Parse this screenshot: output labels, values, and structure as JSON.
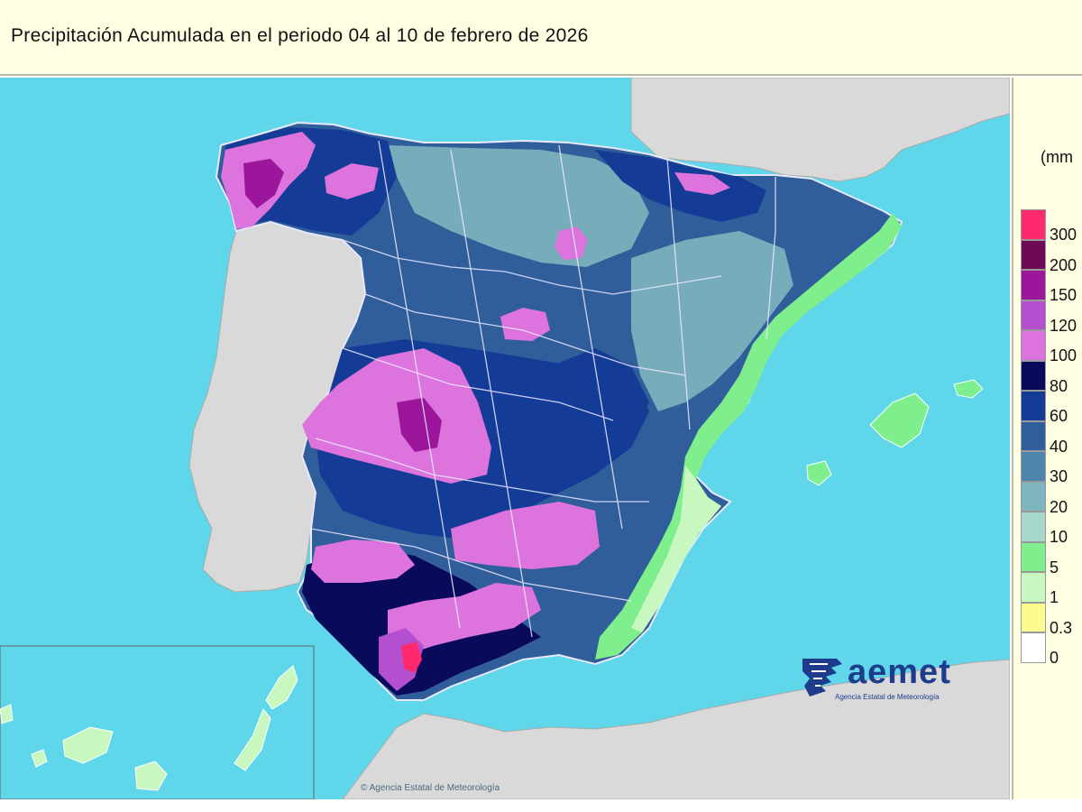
{
  "title": "Precipitación Acumulada en el periodo 04 al 10 de febrero de 2026",
  "legend": {
    "unit": "(mm",
    "classes": [
      {
        "label": "300",
        "color": "#ff2a6d"
      },
      {
        "label": "200",
        "color": "#6e0a55"
      },
      {
        "label": "150",
        "color": "#9c169c"
      },
      {
        "label": "120",
        "color": "#b44fd0"
      },
      {
        "label": "100",
        "color": "#dd73dd"
      },
      {
        "label": "80",
        "color": "#0a0a5c"
      },
      {
        "label": "60",
        "color": "#143c96"
      },
      {
        "label": "40",
        "color": "#2f5e9b"
      },
      {
        "label": "30",
        "color": "#4f86ad"
      },
      {
        "label": "20",
        "color": "#7fb5bf"
      },
      {
        "label": "10",
        "color": "#a8d8cc"
      },
      {
        "label": "5",
        "color": "#7eef8c"
      },
      {
        "label": "1",
        "color": "#c8f7c0"
      },
      {
        "label": "0.3",
        "color": "#fbfb8f"
      },
      {
        "label": "0",
        "color": "#ffffff"
      }
    ]
  },
  "colors": {
    "sea": "#5fd6ea",
    "land_outside": "#d9d9d9",
    "border_lines": "#e8e8ff"
  },
  "logo": {
    "name": "aemet",
    "subtitle": "Agencia Estatal de Meteorología"
  },
  "credit": "© Agencia Estatal de Meteorología"
}
